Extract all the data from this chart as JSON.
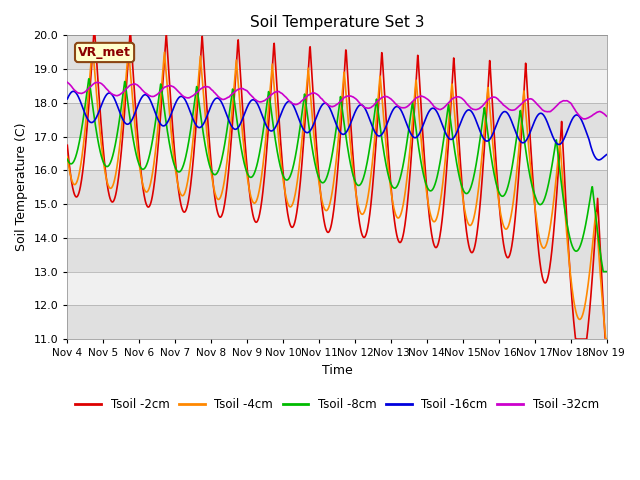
{
  "title": "Soil Temperature Set 3",
  "xlabel": "Time",
  "ylabel": "Soil Temperature (C)",
  "ylim": [
    11.0,
    20.0
  ],
  "yticks": [
    11.0,
    12.0,
    13.0,
    14.0,
    15.0,
    16.0,
    17.0,
    18.0,
    19.0,
    20.0
  ],
  "xtick_labels": [
    "Nov 4",
    "Nov 5",
    "Nov 6",
    "Nov 7",
    "Nov 8",
    "Nov 9",
    "Nov 10",
    "Nov 11",
    "Nov 12",
    "Nov 13",
    "Nov 14",
    "Nov 15",
    "Nov 16",
    "Nov 17",
    "Nov 18",
    "Nov 19"
  ],
  "annotation": "VR_met",
  "legend": [
    "Tsoil -2cm",
    "Tsoil -4cm",
    "Tsoil -8cm",
    "Tsoil -16cm",
    "Tsoil -32cm"
  ],
  "colors": [
    "#dd0000",
    "#ff8800",
    "#00bb00",
    "#0000dd",
    "#cc00cc"
  ],
  "bg_color": "#ffffff",
  "band_light": "#f0f0f0",
  "band_dark": "#e0e0e0"
}
